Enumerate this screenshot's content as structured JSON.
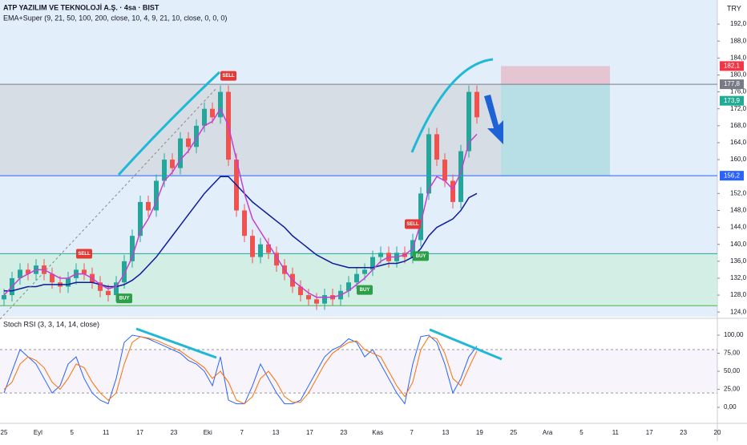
{
  "title": "ATP YAZILIM VE TEKNOLOJİ A.Ş. · 4sa · BIST",
  "indicator": "EMA+Super (9, 21, 50, 100, 200, close, 10, 4, 9, 21, 10, close, 0, 0, 0)",
  "currency": "TRY",
  "chart_data": [
    {
      "type": "candlestick",
      "ylim": [
        122.9,
        197.7
      ],
      "yticks": [
        {
          "value": 124,
          "label": "124,0"
        },
        {
          "value": 128,
          "label": "128,0"
        },
        {
          "value": 132,
          "label": "132,0"
        },
        {
          "value": 136,
          "label": "136,0"
        },
        {
          "value": 140,
          "label": "140,0"
        },
        {
          "value": 144,
          "label": "144,0"
        },
        {
          "value": 148,
          "label": "148,0"
        },
        {
          "value": 152,
          "label": "152,0"
        },
        {
          "value": 160,
          "label": "160,0"
        },
        {
          "value": 164,
          "label": "164,0"
        },
        {
          "value": 168,
          "label": "168,0"
        },
        {
          "value": 172,
          "label": "172,0"
        },
        {
          "value": 176,
          "label": "176,0"
        },
        {
          "value": 180,
          "label": "180,0"
        },
        {
          "value": 184,
          "label": "184,0"
        },
        {
          "value": 188,
          "label": "188,0"
        },
        {
          "value": 192,
          "label": "192,0"
        }
      ],
      "up_color": "#26a69a",
      "down_color": "#ef5350",
      "open": [
        127,
        128,
        132,
        134,
        133,
        135,
        133,
        131,
        130,
        132,
        134,
        133,
        131,
        129,
        128,
        131,
        136,
        142,
        150,
        148,
        155,
        160,
        158,
        165,
        163,
        168,
        172,
        170,
        176,
        160,
        148,
        142,
        137,
        140,
        138,
        135,
        133,
        130,
        128,
        127,
        126,
        128,
        127,
        129,
        131,
        133,
        134,
        137,
        138,
        136,
        138,
        137,
        141,
        152,
        166,
        160,
        155,
        150,
        162,
        176
      ],
      "high": [
        129.5,
        133.5,
        135.5,
        135.5,
        136.5,
        136.5,
        134.5,
        132.5,
        133.5,
        135.5,
        135.5,
        134.5,
        132.5,
        130.5,
        132.5,
        137.5,
        143.5,
        151.5,
        151.5,
        156.5,
        161.5,
        161.5,
        166.5,
        166.5,
        169.5,
        173.5,
        173.5,
        177.5,
        177.5,
        161.5,
        149.5,
        143.5,
        141.5,
        141.5,
        139.5,
        136.5,
        134.5,
        131.5,
        129.5,
        128.5,
        129.5,
        129.5,
        130.5,
        132.5,
        134.5,
        135.5,
        138.5,
        139.5,
        139.5,
        139.5,
        139.5,
        142.5,
        153.5,
        167.5,
        167.5,
        161.5,
        156.5,
        163.5,
        177.5,
        177.5
      ],
      "low": [
        125.5,
        126.5,
        130.5,
        131.5,
        131.5,
        131.5,
        129.5,
        128.5,
        128.5,
        130.5,
        131.5,
        129.5,
        127.5,
        126.5,
        126.5,
        129.5,
        134.5,
        140.5,
        146.5,
        146.5,
        153.5,
        156.5,
        156.5,
        161.5,
        161.5,
        166.5,
        168.5,
        168.5,
        158.5,
        146.5,
        140.5,
        135.5,
        135.5,
        136.5,
        133.5,
        131.5,
        128.5,
        126.5,
        125.5,
        124.5,
        124.5,
        125.5,
        125.5,
        127.5,
        129.5,
        131.5,
        132.5,
        135.5,
        134.5,
        134.5,
        135.5,
        135.5,
        139.5,
        150.5,
        158.5,
        153.5,
        148.5,
        148.5,
        160.5,
        168.5
      ],
      "close": [
        128,
        132,
        134,
        133,
        135,
        133,
        131,
        130,
        132,
        134,
        133,
        131,
        129,
        128,
        131,
        136,
        142,
        150,
        148,
        155,
        160,
        158,
        165,
        163,
        168,
        172,
        170,
        176,
        160,
        148,
        142,
        137,
        140,
        138,
        135,
        133,
        130,
        128,
        127,
        126,
        128,
        127,
        129,
        131,
        133,
        134,
        137,
        138,
        136,
        138,
        137,
        141,
        152,
        166,
        160,
        155,
        150,
        162,
        176,
        170
      ],
      "series": [
        {
          "color": "#0d1b9e",
          "values": [
            129,
            129,
            129.5,
            130,
            130,
            130.5,
            130.5,
            130.5,
            130.5,
            131,
            131,
            131,
            130.5,
            130,
            130,
            130.5,
            131.5,
            133,
            135,
            137,
            139.5,
            142,
            144.5,
            147,
            149.5,
            152,
            154,
            156,
            156,
            154,
            152,
            150,
            148.5,
            147,
            145.5,
            144,
            142,
            140.5,
            139,
            137.5,
            136.5,
            135.5,
            135,
            134.5,
            134.5,
            134.5,
            134.5,
            135,
            135.5,
            135.5,
            136,
            137,
            139,
            142,
            144,
            145,
            146,
            148,
            151,
            152
          ]
        },
        {
          "color": "#c73fd1",
          "values": [
            128,
            130,
            132,
            133,
            134,
            134,
            133,
            132,
            132,
            133,
            133,
            132,
            130.5,
            129.5,
            130,
            133,
            137,
            143,
            146,
            150,
            155,
            157,
            160,
            162,
            165,
            168,
            169,
            172,
            168,
            160,
            152,
            146,
            143,
            140,
            137,
            134,
            131.5,
            130,
            128.5,
            127.5,
            127.5,
            127.5,
            128,
            129,
            130.5,
            132,
            134,
            136,
            137,
            137,
            137.5,
            139,
            145,
            153,
            156,
            155,
            153,
            157,
            164,
            166
          ]
        }
      ],
      "levels": [
        {
          "value": 137.8,
          "color": "#26a69a"
        },
        {
          "value": 125.5,
          "color": "#4caf50"
        }
      ],
      "price_labels": [
        {
          "value": 182.1,
          "label": "182,1",
          "color": "#f23645"
        },
        {
          "value": 177.8,
          "label": "177,8",
          "color": "#787b86"
        },
        {
          "value": 173.9,
          "label": "173,9",
          "color": "#22ab94"
        },
        {
          "value": 156.2,
          "label": "156,2",
          "color": "#2962ff"
        }
      ],
      "signals": [
        {
          "label": "SELL",
          "at": 10
        },
        {
          "label": "BUY",
          "at": 15
        },
        {
          "label": "SELL",
          "at": 28
        },
        {
          "label": "BUY",
          "at": 45
        },
        {
          "label": "SELL",
          "at": 51
        },
        {
          "label": "BUY",
          "at": 52
        }
      ]
    },
    {
      "type": "line",
      "title": "Stoch RSI (3, 3, 14, 14, close)",
      "ylim": [
        -21,
        120
      ],
      "yticks": [
        {
          "value": 0,
          "label": "0,00"
        },
        {
          "value": 25,
          "label": "25,00"
        },
        {
          "value": 50,
          "label": "50,00"
        },
        {
          "value": 75,
          "label": "75,00"
        },
        {
          "value": 100,
          "label": "100,00"
        }
      ],
      "bands": [
        80,
        20
      ],
      "series": [
        {
          "color": "#2962ff",
          "values": [
            20,
            50,
            80,
            70,
            60,
            40,
            20,
            30,
            60,
            70,
            40,
            20,
            10,
            5,
            40,
            90,
            100,
            98,
            95,
            90,
            85,
            80,
            75,
            65,
            60,
            50,
            30,
            70,
            10,
            5,
            5,
            30,
            60,
            40,
            20,
            5,
            5,
            10,
            30,
            50,
            70,
            80,
            85,
            95,
            90,
            70,
            80,
            60,
            40,
            20,
            5,
            60,
            98,
            100,
            90,
            60,
            20,
            40,
            70,
            85
          ]
        },
        {
          "color": "#ff6d00",
          "values": [
            25,
            35,
            60,
            70,
            65,
            55,
            35,
            25,
            40,
            60,
            55,
            35,
            20,
            10,
            20,
            60,
            90,
            98,
            96,
            93,
            88,
            83,
            78,
            70,
            63,
            55,
            40,
            50,
            35,
            10,
            5,
            15,
            40,
            50,
            35,
            15,
            7,
            7,
            20,
            40,
            60,
            75,
            83,
            90,
            92,
            80,
            75,
            70,
            50,
            30,
            15,
            35,
            80,
            98,
            95,
            75,
            40,
            30,
            55,
            78
          ]
        }
      ]
    }
  ],
  "x_axis_labels": [
    "25",
    "Eyl",
    "5",
    "11",
    "17",
    "23",
    "Eki",
    "7",
    "13",
    "17",
    "23",
    "Kas",
    "7",
    "13",
    "19",
    "25",
    "Ara",
    "5",
    "11",
    "17",
    "23",
    "20"
  ]
}
